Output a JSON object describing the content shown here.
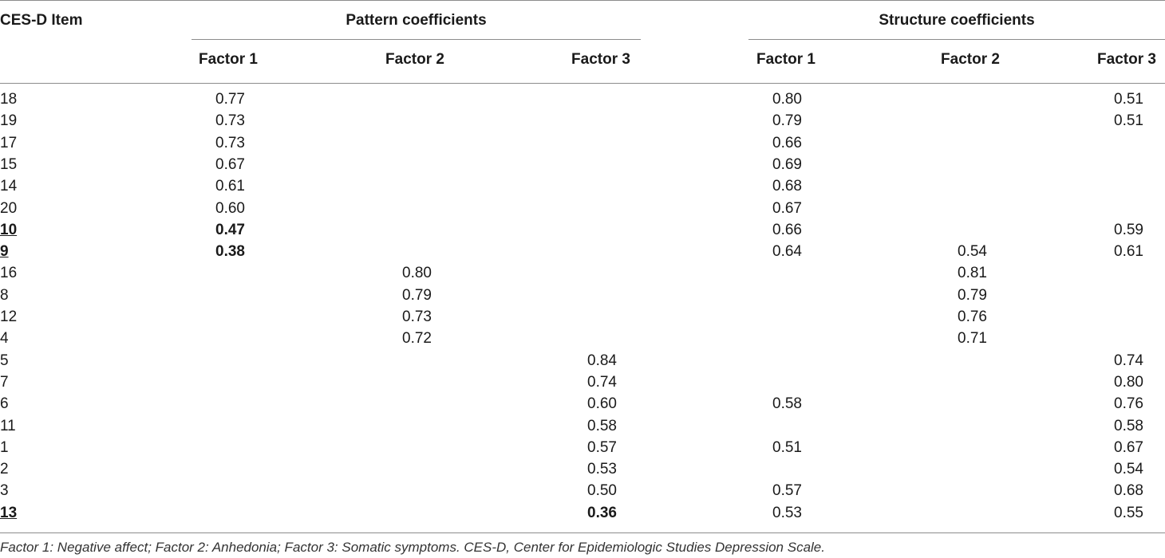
{
  "table": {
    "item_header": "CES-D Item",
    "group_headers": [
      "Pattern coefficients",
      "Structure coefficients"
    ],
    "sub_headers": [
      "Factor 1",
      "Factor 2",
      "Factor 3",
      "Factor 1",
      "Factor 2",
      "Factor 3"
    ],
    "rows": [
      {
        "item": "18",
        "bold_item": false,
        "p": [
          "0.77",
          "",
          ""
        ],
        "p_bold": [
          false,
          false,
          false
        ],
        "s": [
          "0.80",
          "",
          "0.51"
        ]
      },
      {
        "item": "19",
        "bold_item": false,
        "p": [
          "0.73",
          "",
          ""
        ],
        "p_bold": [
          false,
          false,
          false
        ],
        "s": [
          "0.79",
          "",
          "0.51"
        ]
      },
      {
        "item": "17",
        "bold_item": false,
        "p": [
          "0.73",
          "",
          ""
        ],
        "p_bold": [
          false,
          false,
          false
        ],
        "s": [
          "0.66",
          "",
          ""
        ]
      },
      {
        "item": "15",
        "bold_item": false,
        "p": [
          "0.67",
          "",
          ""
        ],
        "p_bold": [
          false,
          false,
          false
        ],
        "s": [
          "0.69",
          "",
          ""
        ]
      },
      {
        "item": "14",
        "bold_item": false,
        "p": [
          "0.61",
          "",
          ""
        ],
        "p_bold": [
          false,
          false,
          false
        ],
        "s": [
          "0.68",
          "",
          ""
        ]
      },
      {
        "item": "20",
        "bold_item": false,
        "p": [
          "0.60",
          "",
          ""
        ],
        "p_bold": [
          false,
          false,
          false
        ],
        "s": [
          "0.67",
          "",
          ""
        ]
      },
      {
        "item": "10",
        "bold_item": true,
        "p": [
          "0.47",
          "",
          ""
        ],
        "p_bold": [
          true,
          false,
          false
        ],
        "s": [
          "0.66",
          "",
          "0.59"
        ]
      },
      {
        "item": "9",
        "bold_item": true,
        "p": [
          "0.38",
          "",
          ""
        ],
        "p_bold": [
          true,
          false,
          false
        ],
        "s": [
          "0.64",
          "0.54",
          "0.61"
        ]
      },
      {
        "item": "16",
        "bold_item": false,
        "p": [
          "",
          "0.80",
          ""
        ],
        "p_bold": [
          false,
          false,
          false
        ],
        "s": [
          "",
          "0.81",
          ""
        ]
      },
      {
        "item": "8",
        "bold_item": false,
        "p": [
          "",
          "0.79",
          ""
        ],
        "p_bold": [
          false,
          false,
          false
        ],
        "s": [
          "",
          "0.79",
          ""
        ]
      },
      {
        "item": "12",
        "bold_item": false,
        "p": [
          "",
          "0.73",
          ""
        ],
        "p_bold": [
          false,
          false,
          false
        ],
        "s": [
          "",
          "0.76",
          ""
        ]
      },
      {
        "item": "4",
        "bold_item": false,
        "p": [
          "",
          "0.72",
          ""
        ],
        "p_bold": [
          false,
          false,
          false
        ],
        "s": [
          "",
          "0.71",
          ""
        ]
      },
      {
        "item": "5",
        "bold_item": false,
        "p": [
          "",
          "",
          "0.84"
        ],
        "p_bold": [
          false,
          false,
          false
        ],
        "s": [
          "",
          "",
          "0.74"
        ]
      },
      {
        "item": "7",
        "bold_item": false,
        "p": [
          "",
          "",
          "0.74"
        ],
        "p_bold": [
          false,
          false,
          false
        ],
        "s": [
          "",
          "",
          "0.80"
        ]
      },
      {
        "item": "6",
        "bold_item": false,
        "p": [
          "",
          "",
          "0.60"
        ],
        "p_bold": [
          false,
          false,
          false
        ],
        "s": [
          "0.58",
          "",
          "0.76"
        ]
      },
      {
        "item": "11",
        "bold_item": false,
        "p": [
          "",
          "",
          "0.58"
        ],
        "p_bold": [
          false,
          false,
          false
        ],
        "s": [
          "",
          "",
          "0.58"
        ]
      },
      {
        "item": "1",
        "bold_item": false,
        "p": [
          "",
          "",
          "0.57"
        ],
        "p_bold": [
          false,
          false,
          false
        ],
        "s": [
          "0.51",
          "",
          "0.67"
        ]
      },
      {
        "item": "2",
        "bold_item": false,
        "p": [
          "",
          "",
          "0.53"
        ],
        "p_bold": [
          false,
          false,
          false
        ],
        "s": [
          "",
          "",
          "0.54"
        ]
      },
      {
        "item": "3",
        "bold_item": false,
        "p": [
          "",
          "",
          "0.50"
        ],
        "p_bold": [
          false,
          false,
          false
        ],
        "s": [
          "0.57",
          "",
          "0.68"
        ]
      },
      {
        "item": "13",
        "bold_item": true,
        "p": [
          "",
          "",
          "0.36"
        ],
        "p_bold": [
          false,
          false,
          true
        ],
        "s": [
          "0.53",
          "",
          "0.55"
        ]
      }
    ]
  },
  "footnote": "Factor 1: Negative affect; Factor 2: Anhedonia; Factor 3: Somatic symptoms. CES-D, Center for Epidemiologic Studies Depression Scale."
}
